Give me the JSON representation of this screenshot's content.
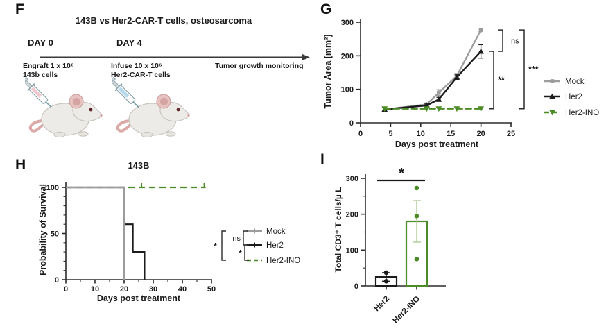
{
  "figure": {
    "panels": {
      "f": {
        "label": "F",
        "title": "143B vs Her2-CAR-T cells, osteosarcoma",
        "day0_heading": "DAY 0",
        "day4_heading": "DAY 4",
        "engraft_line1": "Engraft 1 x 10⁶",
        "engraft_line2": "143b cells",
        "infuse_line1": "Infuse 10 x 10⁶",
        "infuse_line2": "Her2-CAR-T cells",
        "monitoring_label": "Tumor growth monitoring",
        "icons": [
          "mouse-with-syringe-pink",
          "mouse-with-syringe-blue"
        ]
      },
      "g": {
        "label": "G"
      },
      "h": {
        "label": "H"
      },
      "i": {
        "label": "I"
      }
    }
  },
  "chart_data": [
    {
      "panel": "G",
      "type": "line",
      "title": "",
      "xlabel": "Days post treatment",
      "ylabel": "Tumor Area [mm²]",
      "xlim": [
        0,
        25
      ],
      "ylim": [
        0,
        300
      ],
      "xticks": [
        0,
        5,
        10,
        15,
        20,
        25
      ],
      "yticks": [
        0,
        100,
        200,
        300
      ],
      "grid": false,
      "legend_position": "right",
      "x": [
        4,
        11,
        13,
        16,
        20
      ],
      "series": [
        {
          "name": "Mock",
          "color": "#9c9c9c",
          "marker": "square",
          "dashed": false,
          "values": [
            40,
            55,
            90,
            140,
            277
          ],
          "errors": [
            5,
            4,
            9,
            7,
            5
          ]
        },
        {
          "name": "Her2",
          "color": "#1b1b1b",
          "marker": "triangle-up",
          "dashed": false,
          "values": [
            40,
            52,
            70,
            136,
            213
          ],
          "errors": [
            5,
            4,
            6,
            7,
            20
          ]
        },
        {
          "name": "Her2-INO",
          "color": "#4c8c26",
          "marker": "triangle-down",
          "dashed": true,
          "values": [
            42,
            42,
            42,
            42,
            42
          ],
          "errors": [
            3,
            3,
            3,
            3,
            3
          ]
        }
      ],
      "significance": [
        {
          "label": "ns",
          "pair": [
            "Mock",
            "Her2"
          ]
        },
        {
          "label": "**",
          "pair": [
            "Her2",
            "Her2-INO"
          ]
        },
        {
          "label": "***",
          "pair": [
            "Mock",
            "Her2-INO"
          ]
        }
      ]
    },
    {
      "panel": "H",
      "type": "line",
      "subtype": "kaplan-meier",
      "title": "143B",
      "xlabel": "Days post treatment",
      "ylabel": "Probability of Survival",
      "xlim": [
        0,
        50
      ],
      "ylim": [
        0,
        100
      ],
      "xticks": [
        0,
        10,
        20,
        30,
        40,
        50
      ],
      "yticks": [
        0,
        50,
        100
      ],
      "grid": false,
      "legend_position": "right",
      "series": [
        {
          "name": "Mock",
          "color": "#9c9c9c",
          "dashed": false,
          "steps": [
            [
              0,
              100
            ],
            [
              20,
              100
            ],
            [
              20,
              0
            ]
          ]
        },
        {
          "name": "Her2",
          "color": "#1b1b1b",
          "dashed": false,
          "steps": [
            [
              0,
              100
            ],
            [
              20,
              100
            ],
            [
              20,
              60
            ],
            [
              23,
              60
            ],
            [
              23,
              30
            ],
            [
              27,
              30
            ],
            [
              27,
              0
            ]
          ]
        },
        {
          "name": "Her2-INO",
          "color": "#4c8c26",
          "dashed": true,
          "steps": [
            [
              0,
              100
            ],
            [
              48,
              100
            ]
          ],
          "censor_marks": [
            26,
            47.5
          ]
        }
      ],
      "significance": [
        {
          "label": "ns",
          "pair": [
            "Mock",
            "Her2"
          ]
        },
        {
          "label": "*",
          "pair": [
            "Her2",
            "Her2-INO"
          ]
        },
        {
          "label": "*",
          "pair": [
            "Mock",
            "Her2-INO"
          ]
        }
      ]
    },
    {
      "panel": "I",
      "type": "bar",
      "title": "",
      "xlabel": "",
      "ylabel": "Total CD3⁺ T cells/µ L",
      "ylim": [
        0,
        300
      ],
      "yticks": [
        0,
        100,
        200,
        300
      ],
      "grid": false,
      "categories": [
        "Her2",
        "Her2-INO"
      ],
      "values": [
        25,
        180
      ],
      "errors": [
        12,
        58
      ],
      "points": [
        [
          13,
          37
        ],
        [
          75,
          195,
          273
        ]
      ],
      "bar_colors": [
        "#1b1b1b",
        "#4c8c26"
      ],
      "error_colors": [
        "#1b1b1b",
        "#a7c78b"
      ],
      "significance": [
        {
          "label": "*",
          "pair": [
            "Her2",
            "Her2-INO"
          ]
        }
      ]
    }
  ],
  "colors": {
    "axis": "#2b2b2b",
    "text": "#1a1a1a",
    "arrow": "#3a3a3a",
    "gray_series": "#9c9c9c",
    "black_series": "#1b1b1b",
    "green_series": "#4c8c26",
    "green_error": "#a7c78b",
    "mouse_body": "#ecebe8",
    "mouse_outline": "#c9c4bc",
    "mouse_ear": "#e6c2c0",
    "mouse_ear_inner": "#d5a3a1",
    "mouse_tail": "#dba9a7",
    "mouse_eye": "#5e2228",
    "syringe_pink_liquid": "#efc9cd",
    "syringe_blue_liquid": "#b7d9ec"
  }
}
